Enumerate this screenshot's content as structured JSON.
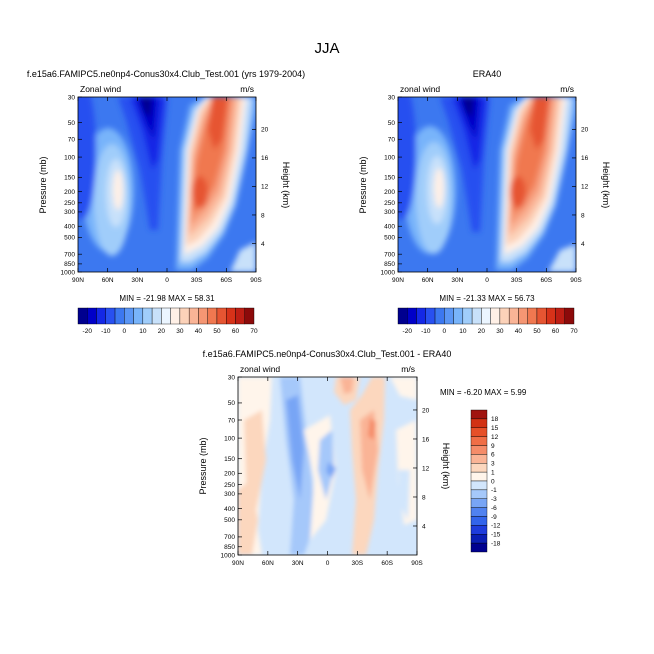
{
  "figure_title": "JJA",
  "chart_data": [
    {
      "type": "heatmap",
      "title": "f.e15a6.FAMIPC5.ne0np4-Conus30x4.Club_Test.001 (yrs 1979-2004)",
      "left_label": "Zonal wind",
      "right_label": "m/s",
      "ylabel": "Pressure (mb)",
      "y2label": "Height (km)",
      "xticks": [
        "90N",
        "60N",
        "30N",
        "0",
        "30S",
        "60S",
        "90S"
      ],
      "yticks": [
        30,
        50,
        70,
        100,
        150,
        200,
        250,
        300,
        400,
        500,
        700,
        850,
        1000
      ],
      "y2ticks": [
        4,
        8,
        12,
        16,
        20
      ],
      "stats_text": "MIN = -21.98   MAX = 58.31",
      "min": -21.98,
      "max": 58.31,
      "colorbar": {
        "levels": [
          -25,
          -20,
          -15,
          -10,
          -5,
          0,
          5,
          10,
          15,
          20,
          25,
          30,
          35,
          40,
          45,
          50,
          60,
          70,
          80
        ],
        "colors": [
          "#00008f",
          "#0000c8",
          "#1428e6",
          "#2850f0",
          "#3c78f0",
          "#5a96f5",
          "#78b4fa",
          "#a0cdfa",
          "#c8e1fa",
          "#ebf5ff",
          "#fff0e6",
          "#fcd2b9",
          "#fab496",
          "#f59673",
          "#f07850",
          "#e65532",
          "#d73219",
          "#be1e14",
          "#8c0a0a"
        ],
        "labels": [
          "-20",
          "-10",
          "0",
          "10",
          "20",
          "30",
          "40",
          "50",
          "60",
          "70"
        ]
      }
    },
    {
      "type": "heatmap",
      "title": "ERA40",
      "left_label": "zonal wind",
      "right_label": "m/s",
      "ylabel": "Pressure (mb)",
      "y2label": "Height (km)",
      "xticks": [
        "90N",
        "60N",
        "30N",
        "0",
        "30S",
        "60S",
        "90S"
      ],
      "yticks": [
        30,
        50,
        70,
        100,
        150,
        200,
        250,
        300,
        400,
        500,
        700,
        850,
        1000
      ],
      "y2ticks": [
        4,
        8,
        12,
        16,
        20
      ],
      "stats_text": "MIN = -21.33   MAX = 56.73",
      "min": -21.33,
      "max": 56.73,
      "colorbar": {
        "levels": [
          -25,
          -20,
          -15,
          -10,
          -5,
          0,
          5,
          10,
          15,
          20,
          25,
          30,
          35,
          40,
          45,
          50,
          60,
          70,
          80
        ],
        "colors": [
          "#00008f",
          "#0000c8",
          "#1428e6",
          "#2850f0",
          "#3c78f0",
          "#5a96f5",
          "#78b4fa",
          "#a0cdfa",
          "#c8e1fa",
          "#ebf5ff",
          "#fff0e6",
          "#fcd2b9",
          "#fab496",
          "#f59673",
          "#f07850",
          "#e65532",
          "#d73219",
          "#be1e14",
          "#8c0a0a"
        ],
        "labels": [
          "-20",
          "-10",
          "0",
          "10",
          "20",
          "30",
          "40",
          "50",
          "60",
          "70"
        ]
      }
    },
    {
      "type": "heatmap",
      "title": "f.e15a6.FAMIPC5.ne0np4-Conus30x4.Club_Test.001 - ERA40",
      "left_label": "zonal wind",
      "right_label": "m/s",
      "ylabel": "Pressure (mb)",
      "y2label": "Height (km)",
      "xticks": [
        "90N",
        "60N",
        "30N",
        "0",
        "30S",
        "60S",
        "90S"
      ],
      "yticks": [
        30,
        50,
        70,
        100,
        150,
        200,
        250,
        300,
        400,
        500,
        700,
        850,
        1000
      ],
      "y2ticks": [
        4,
        8,
        12,
        16,
        20
      ],
      "stats_text": "MIN =  -6.20   MAX =   5.99",
      "min": -6.2,
      "max": 5.99,
      "colorbar": {
        "levels": [
          -21,
          -18,
          -15,
          -12,
          -9,
          -6,
          -3,
          -1,
          0,
          1,
          3,
          6,
          9,
          12,
          15,
          18,
          21
        ],
        "colors": [
          "#00008f",
          "#0a1eb4",
          "#1e3cdc",
          "#3264eb",
          "#5082f0",
          "#78a5f5",
          "#a5c8fa",
          "#d2e6fc",
          "#fff5eb",
          "#fcd7be",
          "#fab496",
          "#f58c69",
          "#f06e46",
          "#e65028",
          "#d23214",
          "#a01410"
        ],
        "labels": [
          "18",
          "15",
          "12",
          "9",
          "6",
          "3",
          "1",
          "0",
          "-1",
          "-3",
          "-6",
          "-9",
          "-12",
          "-15",
          "-18"
        ]
      }
    }
  ]
}
